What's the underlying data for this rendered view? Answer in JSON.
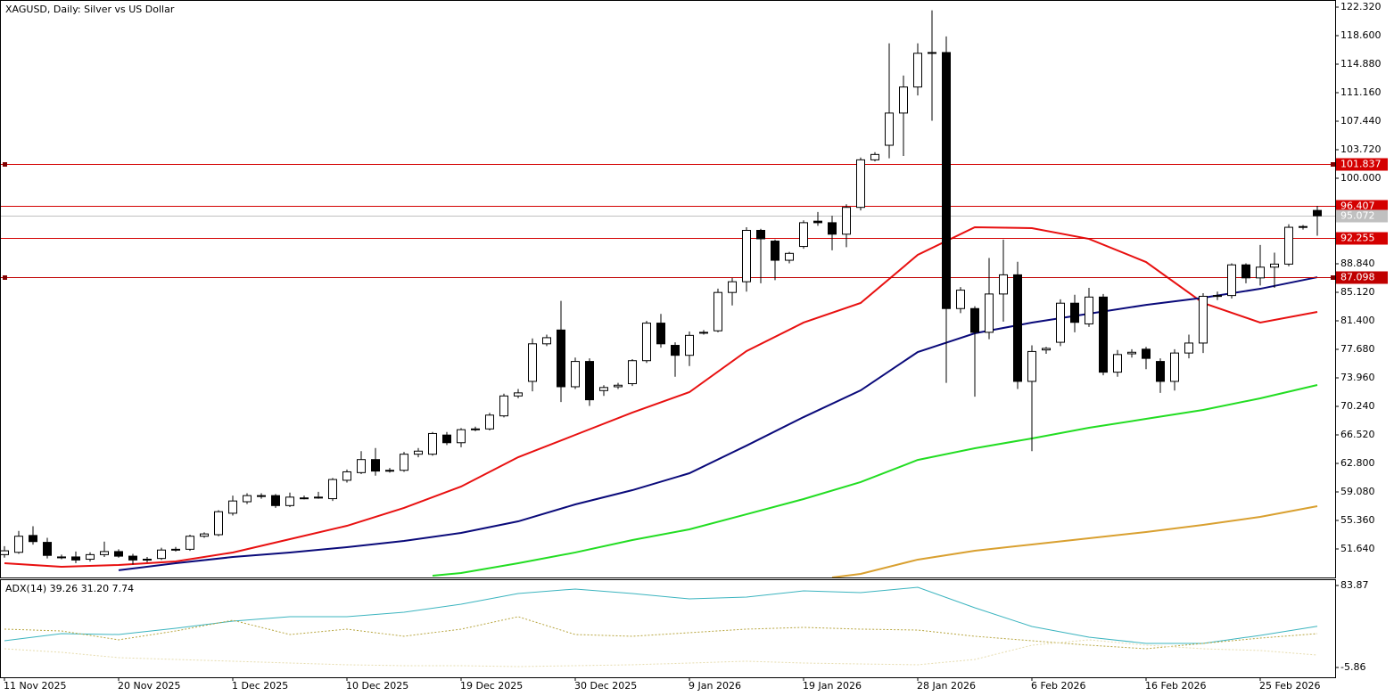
{
  "chart_data": [
    {
      "type": "candlestick",
      "title": "XAGUSD, Daily:  Silver vs US Dollar",
      "categories": [
        "11 Nov 2025",
        null,
        null,
        null,
        null,
        null,
        null,
        null,
        "20 Nov 2025",
        null,
        null,
        null,
        null,
        null,
        null,
        null,
        "1 Dec 2025",
        null,
        null,
        null,
        null,
        null,
        null,
        null,
        "10 Dec 2025",
        null,
        null,
        null,
        null,
        null,
        null,
        null,
        "19 Dec 2025",
        null,
        null,
        null,
        null,
        null,
        null,
        null,
        "30 Dec 2025",
        null,
        null,
        null,
        null,
        null,
        null,
        null,
        "9 Jan 2026",
        null,
        null,
        null,
        null,
        null,
        null,
        null,
        "19 Jan 2026",
        null,
        null,
        null,
        null,
        null,
        null,
        null,
        "28 Jan 2026",
        null,
        null,
        null,
        null,
        null,
        null,
        null,
        "6 Feb 2026",
        null,
        null,
        null,
        null,
        null,
        null,
        null,
        "16 Feb 2026",
        null,
        null,
        null,
        null,
        null,
        null,
        null,
        "25 Feb 2026",
        null,
        null,
        null,
        null
      ],
      "open": [
        50.9,
        51.2,
        53.4,
        52.5,
        50.6,
        50.6,
        50.3,
        50.9,
        51.3,
        50.7,
        50.2,
        50.4,
        51.5,
        51.6,
        53.3,
        53.5,
        56.3,
        57.8,
        58.6,
        58.6,
        57.3,
        58.3,
        58.4,
        58.2,
        60.6,
        61.6,
        63.3,
        61.9,
        61.9,
        64.0,
        64.0,
        66.5,
        65.5,
        67.3,
        67.3,
        69.0,
        71.6,
        73.5,
        78.4,
        80.2,
        72.8,
        76.1,
        72.3,
        72.8,
        73.2,
        76.2,
        81.1,
        78.2,
        76.9,
        79.9,
        80.1,
        85.1,
        86.5,
        93.2,
        91.8,
        89.3,
        91.1,
        94.4,
        94.2,
        92.7,
        96.2,
        102.4,
        104.3,
        108.5,
        111.9,
        116.4,
        116.4,
        83.0,
        83.0,
        79.9,
        84.9,
        87.4,
        73.5,
        77.6,
        78.6,
        83.7,
        81.0,
        84.5,
        74.7,
        77.1,
        77.7,
        76.1,
        73.5,
        77.2,
        78.5,
        84.7,
        84.7,
        88.7,
        87.0,
        88.4,
        88.8,
        93.6,
        95.8
      ],
      "high": [
        52.0,
        54.0,
        54.6,
        53.1,
        50.9,
        51.3,
        51.2,
        52.6,
        51.6,
        51.0,
        50.6,
        51.8,
        51.9,
        53.5,
        53.8,
        56.7,
        58.6,
        58.9,
        58.9,
        58.8,
        59.0,
        58.6,
        59.1,
        60.9,
        62.0,
        64.4,
        64.8,
        62.2,
        64.3,
        64.8,
        66.9,
        66.9,
        67.4,
        67.6,
        69.4,
        71.9,
        72.5,
        79.1,
        79.6,
        84.0,
        76.6,
        76.5,
        73.0,
        73.3,
        76.4,
        81.4,
        82.3,
        78.6,
        80.0,
        80.2,
        85.6,
        87.0,
        93.6,
        93.4,
        92.0,
        90.4,
        94.5,
        95.6,
        95.1,
        96.6,
        102.7,
        103.4,
        117.6,
        113.4,
        117.6,
        121.9,
        118.5,
        85.8,
        83.3,
        89.6,
        92.0,
        89.1,
        78.2,
        78.0,
        84.2,
        84.8,
        85.7,
        84.9,
        77.6,
        77.7,
        78.0,
        76.5,
        77.7,
        79.6,
        85.0,
        85.2,
        88.9,
        88.9,
        91.3,
        90.3,
        94.0,
        93.9,
        96.4
      ],
      "low": [
        50.5,
        51.0,
        52.2,
        50.4,
        50.3,
        49.8,
        50.0,
        50.6,
        50.5,
        49.6,
        49.9,
        50.2,
        51.3,
        51.4,
        53.1,
        53.3,
        56.0,
        57.5,
        58.2,
        57.0,
        57.1,
        58.1,
        58.2,
        57.9,
        60.3,
        61.4,
        61.2,
        61.6,
        61.7,
        63.6,
        63.8,
        65.2,
        64.9,
        67.0,
        67.1,
        68.8,
        71.3,
        72.2,
        78.1,
        70.8,
        72.5,
        70.3,
        71.6,
        72.5,
        72.9,
        75.9,
        77.9,
        74.1,
        75.5,
        79.6,
        79.9,
        83.4,
        85.2,
        86.3,
        86.7,
        88.9,
        90.8,
        93.8,
        90.6,
        91.0,
        95.8,
        102.2,
        102.6,
        102.9,
        110.8,
        107.5,
        73.3,
        82.4,
        71.5,
        79.0,
        81.3,
        72.5,
        64.4,
        77.1,
        78.1,
        79.9,
        80.6,
        74.3,
        74.1,
        76.6,
        75.1,
        72.0,
        72.3,
        76.5,
        77.2,
        84.1,
        84.3,
        86.3,
        86.0,
        85.7,
        88.5,
        93.3,
        92.5
      ],
      "close": [
        51.4,
        53.3,
        52.6,
        50.8,
        50.5,
        50.2,
        50.9,
        51.3,
        50.7,
        50.2,
        50.3,
        51.5,
        51.6,
        53.3,
        53.6,
        56.5,
        57.9,
        58.6,
        58.5,
        57.3,
        58.4,
        58.3,
        58.3,
        60.7,
        61.7,
        63.3,
        61.8,
        61.9,
        64.0,
        64.4,
        66.7,
        65.5,
        67.2,
        67.3,
        69.1,
        71.6,
        72.0,
        78.4,
        79.2,
        72.8,
        76.1,
        71.1,
        72.7,
        73.0,
        76.2,
        81.1,
        78.4,
        76.9,
        79.5,
        79.9,
        85.1,
        86.5,
        93.2,
        92.1,
        89.3,
        90.2,
        94.2,
        94.2,
        92.7,
        96.2,
        102.4,
        103.1,
        108.5,
        111.9,
        116.3,
        116.3,
        83.0,
        85.4,
        79.9,
        84.9,
        87.4,
        73.5,
        77.4,
        77.8,
        83.7,
        81.2,
        84.5,
        74.7,
        77.0,
        77.3,
        76.5,
        73.5,
        77.2,
        78.5,
        84.6,
        84.7,
        88.7,
        87.0,
        88.4,
        88.8,
        93.6,
        93.7,
        95.1
      ],
      "up_color": "#ffffff",
      "down_color": "#000000",
      "edge_color": "#000000",
      "lines": [
        {
          "color": "#e81010",
          "x": [
            0,
            4,
            8,
            12,
            16,
            20,
            24,
            28,
            32,
            36,
            40,
            44,
            48,
            52,
            56,
            60,
            64,
            68,
            72,
            76,
            80,
            84,
            88,
            92
          ],
          "values": [
            49.78,
            49.31,
            49.55,
            50.01,
            51.18,
            52.92,
            54.66,
            56.99,
            59.78,
            63.61,
            66.52,
            69.43,
            72.1,
            77.45,
            81.17,
            83.73,
            90.0,
            93.61,
            93.49,
            92.09,
            89.07,
            83.73,
            81.17,
            82.56
          ]
        },
        {
          "color": "#0a0a7a",
          "x": [
            8,
            12,
            16,
            20,
            24,
            28,
            32,
            36,
            40,
            44,
            48,
            52,
            56,
            60,
            64,
            68,
            72,
            76,
            80,
            84,
            88,
            92
          ],
          "values": [
            48.86,
            49.78,
            50.59,
            51.18,
            51.87,
            52.69,
            53.73,
            55.24,
            57.45,
            59.31,
            61.52,
            65.12,
            68.84,
            72.33,
            77.33,
            79.77,
            81.17,
            82.33,
            83.48,
            84.41,
            85.58,
            87.09
          ]
        },
        {
          "color": "#22dd22",
          "x": [
            30,
            32,
            36,
            40,
            44,
            48,
            52,
            56,
            60,
            64,
            68,
            72,
            76,
            80,
            84,
            88,
            92
          ],
          "values": [
            48.15,
            48.5,
            49.78,
            51.18,
            52.8,
            54.2,
            56.17,
            58.15,
            60.36,
            63.25,
            64.78,
            66.06,
            67.45,
            68.61,
            69.78,
            71.29,
            73.03
          ]
        },
        {
          "color": "#d9a030",
          "x": [
            58,
            60,
            64,
            68,
            72,
            76,
            80,
            84,
            88,
            92
          ],
          "values": [
            47.92,
            48.39,
            50.25,
            51.41,
            52.22,
            53.03,
            53.85,
            54.78,
            55.82,
            57.22
          ]
        }
      ],
      "levels": [
        {
          "value": 101.837,
          "color": "#d40000",
          "marker": true
        },
        {
          "value": 96.407,
          "color": "#d40000",
          "marker": false
        },
        {
          "value": 95.072,
          "color": "#c0c0c0",
          "marker": false
        },
        {
          "value": 92.255,
          "color": "#d40000",
          "marker": false
        },
        {
          "value": 87.098,
          "color": "#c00000",
          "marker": true
        }
      ],
      "ylim": [
        47.92,
        123.25
      ],
      "yticks": [
        {
          "value": 122.32,
          "label": "122.320"
        },
        {
          "value": 118.6,
          "label": "118.600"
        },
        {
          "value": 114.88,
          "label": "114.880"
        },
        {
          "value": 111.16,
          "label": "111.160"
        },
        {
          "value": 107.44,
          "label": "107.440"
        },
        {
          "value": 103.72,
          "label": "103.720"
        },
        {
          "value": 100,
          "label": "100.000"
        },
        {
          "value": 88.84,
          "label": "88.840"
        },
        {
          "value": 85.12,
          "label": "85.120"
        },
        {
          "value": 81.4,
          "label": "81.400"
        },
        {
          "value": 77.68,
          "label": "77.680"
        },
        {
          "value": 73.96,
          "label": "73.960"
        },
        {
          "value": 70.24,
          "label": "70.240"
        },
        {
          "value": 66.52,
          "label": "66.520"
        },
        {
          "value": 62.8,
          "label": "62.800"
        },
        {
          "value": 59.08,
          "label": "59.080"
        },
        {
          "value": 55.36,
          "label": "55.360"
        },
        {
          "value": 51.64,
          "label": "51.640"
        }
      ]
    },
    {
      "type": "line",
      "title": "ADX(14) 39.26 31.20 7.74",
      "x": [
        0,
        4,
        8,
        12,
        16,
        20,
        24,
        28,
        32,
        36,
        40,
        44,
        48,
        52,
        56,
        60,
        64,
        68,
        72,
        76,
        80,
        84,
        88,
        92
      ],
      "series": [
        {
          "color": "#3bb4bf",
          "style": "solid",
          "values": [
            23.4,
            31.2,
            30.2,
            37.0,
            44.8,
            49.7,
            49.7,
            54.6,
            63.4,
            75.1,
            80.0,
            75.1,
            69.2,
            71.2,
            78.0,
            76.1,
            81.9,
            59.5,
            39.0,
            27.3,
            20.5,
            20.5,
            29.3,
            39.26
          ]
        },
        {
          "color": "#b8a640",
          "style": "dotted",
          "values": [
            36.1,
            34.1,
            24.4,
            34.1,
            45.8,
            30.2,
            36.1,
            28.3,
            36.1,
            49.7,
            30.2,
            28.3,
            32.2,
            36.1,
            38.0,
            36.1,
            35.1,
            28.3,
            23.4,
            18.5,
            14.6,
            20.5,
            26.3,
            31.2
          ]
        },
        {
          "color": "#e6dcae",
          "style": "dotted",
          "values": [
            14.6,
            10.7,
            4.9,
            2.9,
            1.0,
            -1.0,
            -2.9,
            -3.9,
            -3.9,
            -4.9,
            -3.9,
            -2.9,
            -1.0,
            1.0,
            -1.0,
            -2.0,
            -2.9,
            2.9,
            18.5,
            24.4,
            18.5,
            14.6,
            12.7,
            7.74
          ]
        }
      ],
      "ylim": [
        -16.6,
        89.72
      ],
      "yticks": [
        83.87,
        -5.86
      ]
    }
  ]
}
